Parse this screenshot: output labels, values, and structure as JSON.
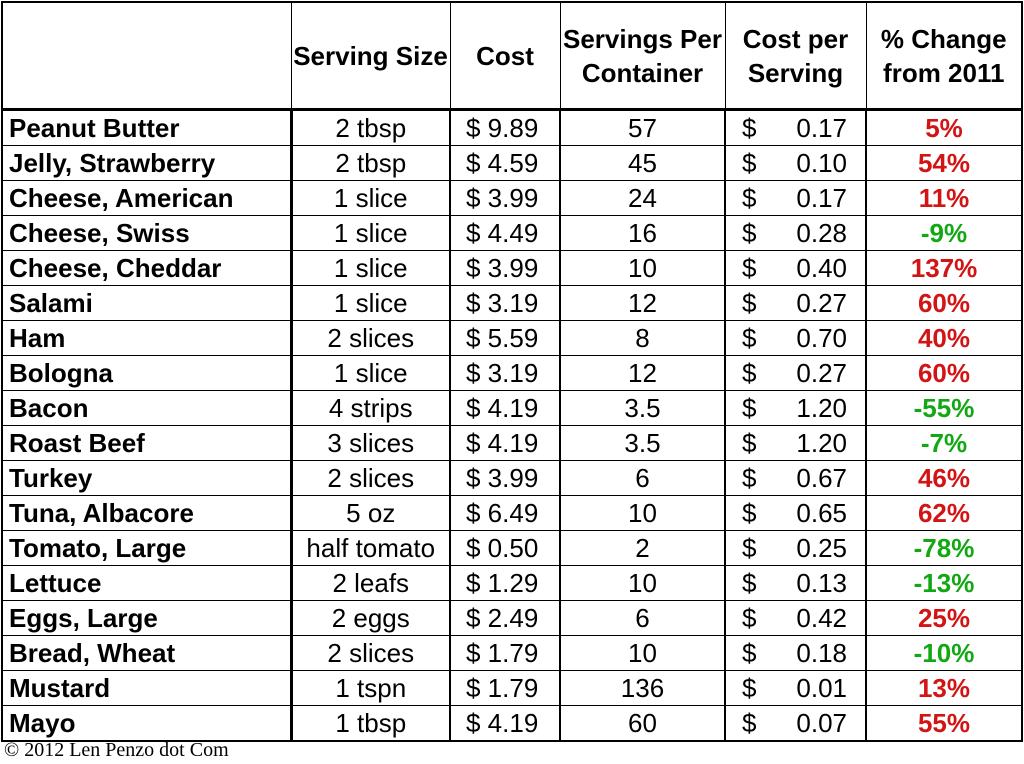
{
  "table": {
    "headers": [
      "",
      "Serving Size",
      "Cost",
      "Servings Per Container",
      "Cost per Serving",
      "% Change from 2011"
    ],
    "currency_symbol": "$",
    "increase_color": "#d21414",
    "decrease_color": "#13a813",
    "rows": [
      {
        "item": "Peanut Butter",
        "serving": "2 tbsp",
        "cost": "$ 9.89",
        "servings": "57",
        "cps": "0.17",
        "change": "5%"
      },
      {
        "item": "Jelly, Strawberry",
        "serving": "2 tbsp",
        "cost": "$ 4.59",
        "servings": "45",
        "cps": "0.10",
        "change": "54%"
      },
      {
        "item": "Cheese, American",
        "serving": "1 slice",
        "cost": "$ 3.99",
        "servings": "24",
        "cps": "0.17",
        "change": "11%"
      },
      {
        "item": "Cheese, Swiss",
        "serving": "1 slice",
        "cost": "$ 4.49",
        "servings": "16",
        "cps": "0.28",
        "change": "-9%"
      },
      {
        "item": "Cheese, Cheddar",
        "serving": "1 slice",
        "cost": "$ 3.99",
        "servings": "10",
        "cps": "0.40",
        "change": "137%"
      },
      {
        "item": "Salami",
        "serving": "1 slice",
        "cost": "$ 3.19",
        "servings": "12",
        "cps": "0.27",
        "change": "60%"
      },
      {
        "item": "Ham",
        "serving": "2 slices",
        "cost": "$ 5.59",
        "servings": "8",
        "cps": "0.70",
        "change": "40%"
      },
      {
        "item": "Bologna",
        "serving": "1 slice",
        "cost": "$ 3.19",
        "servings": "12",
        "cps": "0.27",
        "change": "60%"
      },
      {
        "item": "Bacon",
        "serving": "4 strips",
        "cost": "$ 4.19",
        "servings": "3.5",
        "cps": "1.20",
        "change": "-55%"
      },
      {
        "item": "Roast Beef",
        "serving": "3 slices",
        "cost": "$ 4.19",
        "servings": "3.5",
        "cps": "1.20",
        "change": "-7%"
      },
      {
        "item": "Turkey",
        "serving": "2 slices",
        "cost": "$ 3.99",
        "servings": "6",
        "cps": "0.67",
        "change": "46%"
      },
      {
        "item": "Tuna, Albacore",
        "serving": "5 oz",
        "cost": "$ 6.49",
        "servings": "10",
        "cps": "0.65",
        "change": "62%"
      },
      {
        "item": "Tomato, Large",
        "serving": "half tomato",
        "cost": "$ 0.50",
        "servings": "2",
        "cps": "0.25",
        "change": "-78%"
      },
      {
        "item": "Lettuce",
        "serving": "2 leafs",
        "cost": "$ 1.29",
        "servings": "10",
        "cps": "0.13",
        "change": "-13%"
      },
      {
        "item": "Eggs, Large",
        "serving": "2 eggs",
        "cost": "$ 2.49",
        "servings": "6",
        "cps": "0.42",
        "change": "25%"
      },
      {
        "item": "Bread, Wheat",
        "serving": "2 slices",
        "cost": "$ 1.79",
        "servings": "10",
        "cps": "0.18",
        "change": "-10%"
      },
      {
        "item": "Mustard",
        "serving": "1 tspn",
        "cost": "$ 1.79",
        "servings": "136",
        "cps": "0.01",
        "change": "13%"
      },
      {
        "item": "Mayo",
        "serving": "1 tbsp",
        "cost": "$ 4.19",
        "servings": "60",
        "cps": "0.07",
        "change": "55%"
      }
    ]
  },
  "footer": {
    "credit": "© 2012 Len Penzo dot Com"
  }
}
